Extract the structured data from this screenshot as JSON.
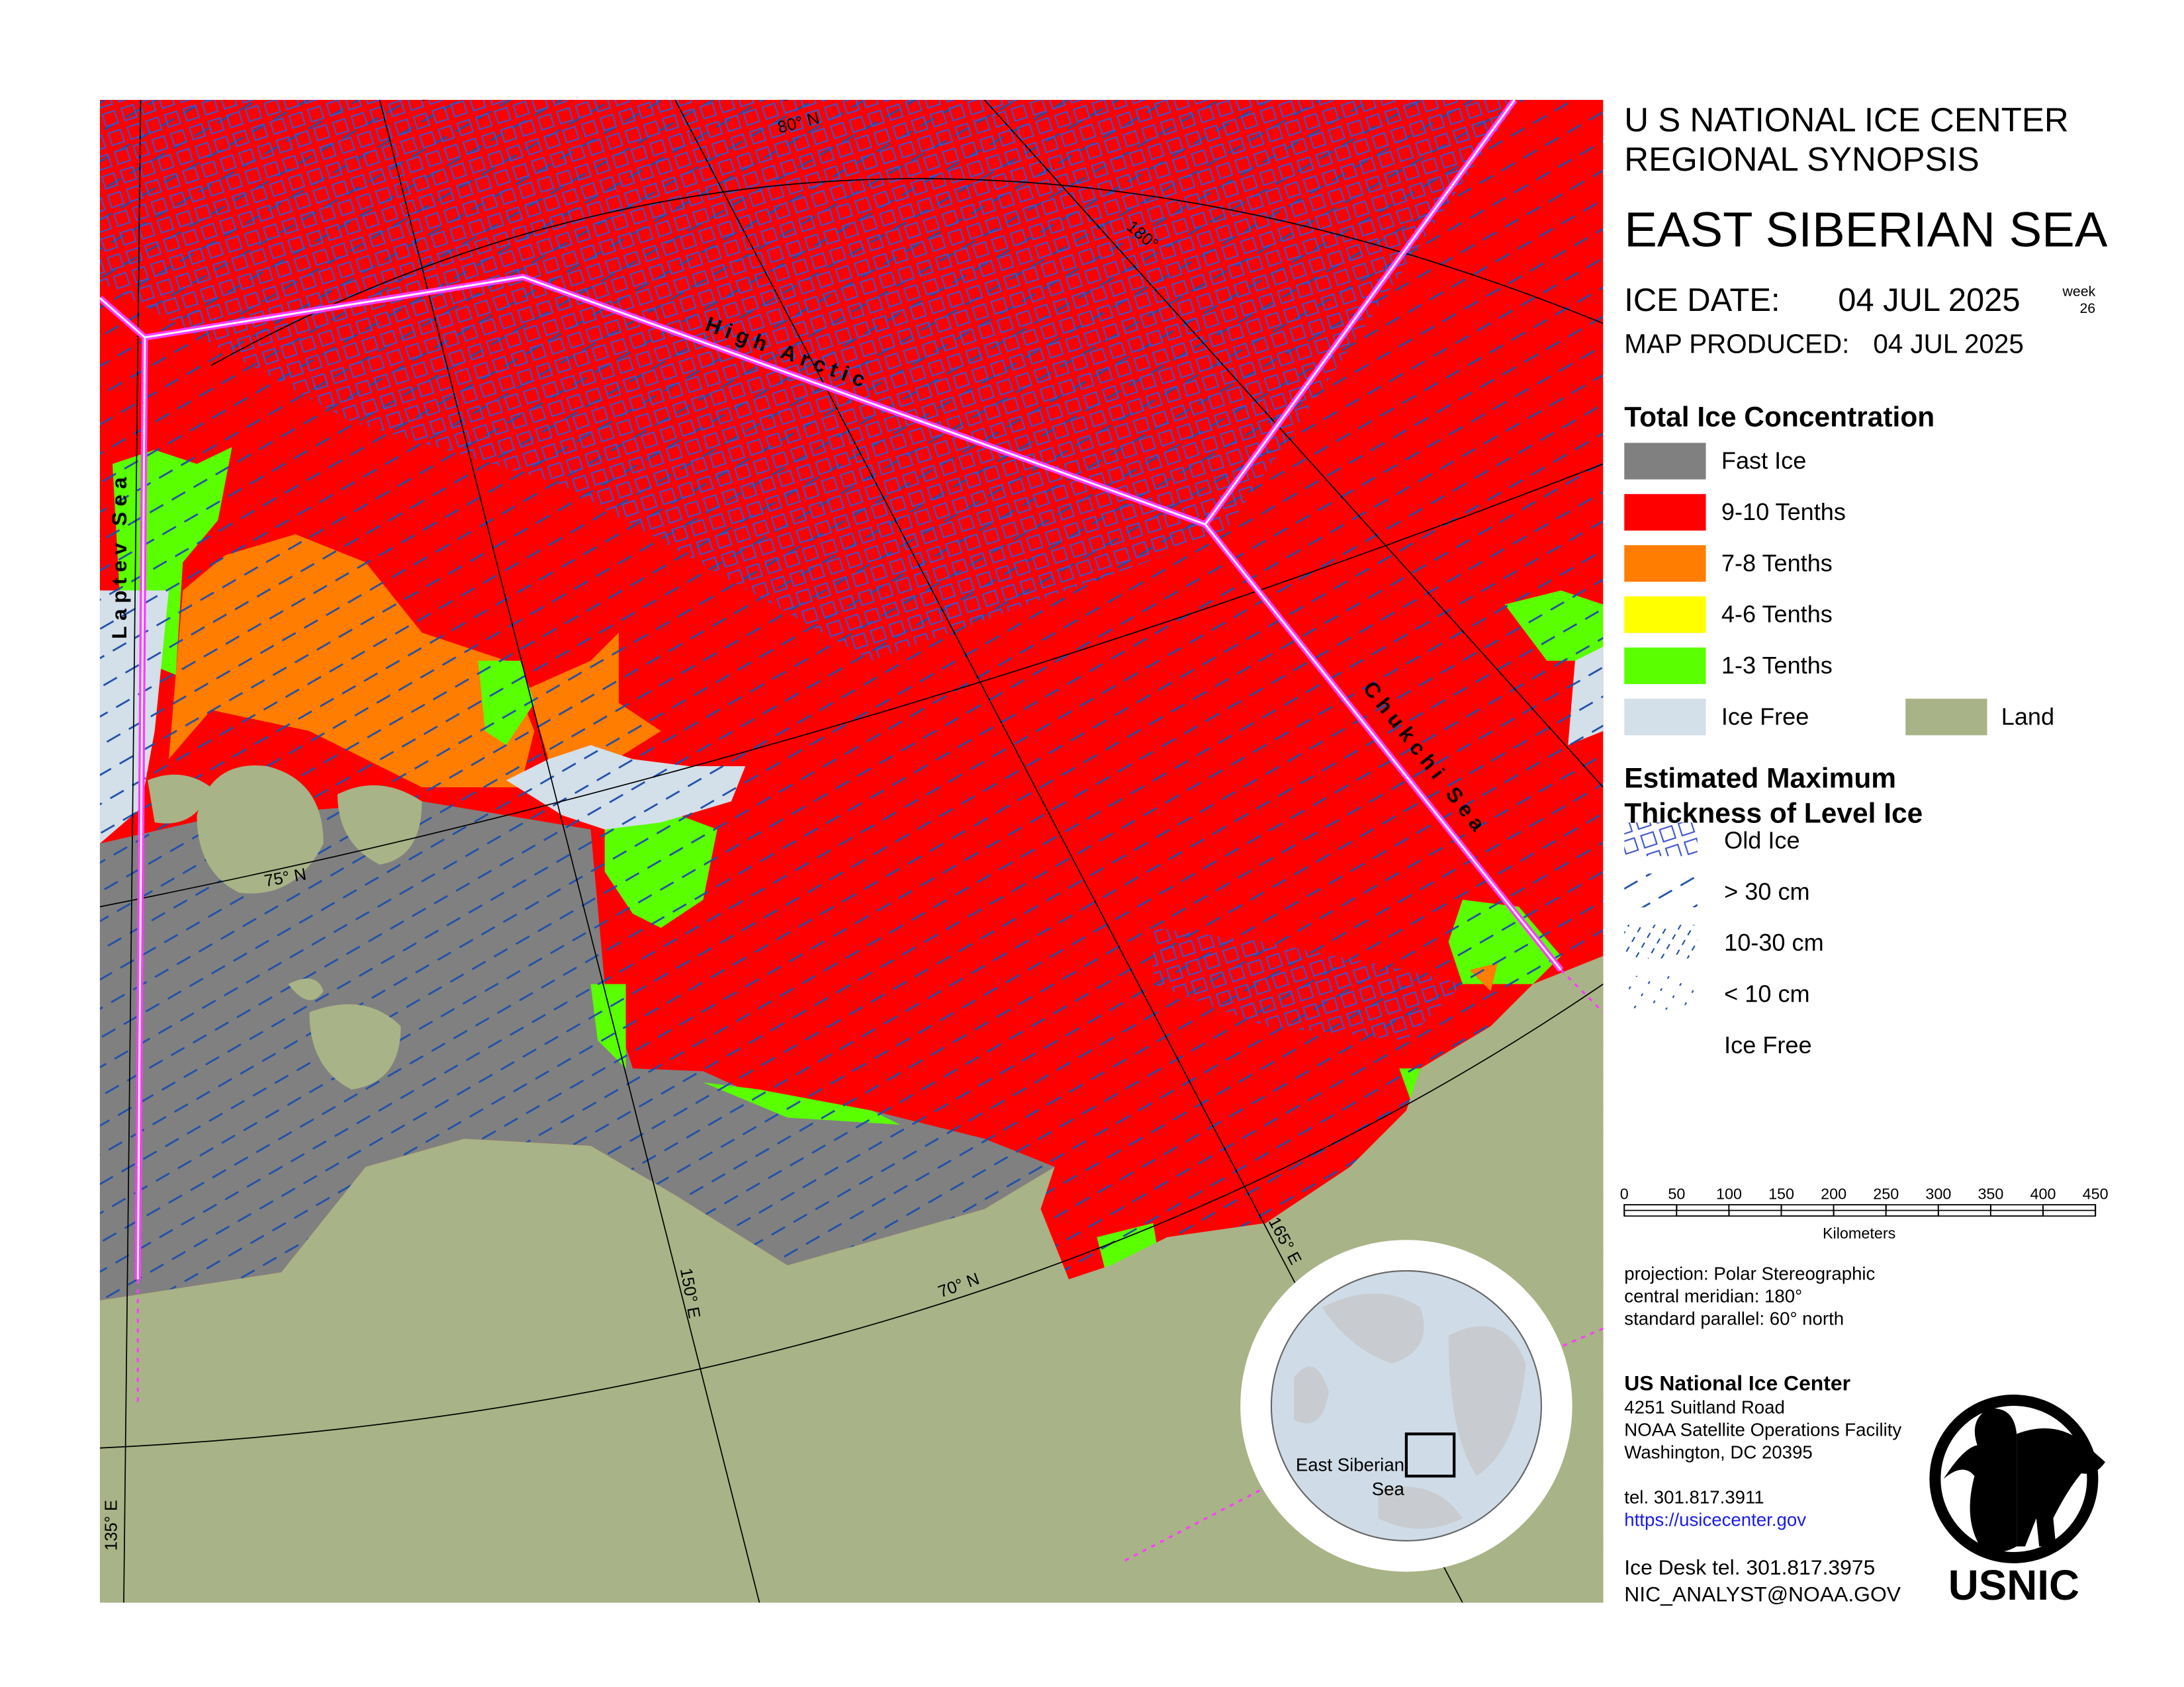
{
  "header": {
    "agency": "U S NATIONAL ICE CENTER",
    "product": "REGIONAL SYNOPSIS",
    "region": "EAST SIBERIAN SEA",
    "ice_date_label": "ICE DATE:",
    "ice_date": "04 JUL 2025",
    "week_label": "week",
    "week": "26",
    "produced_label": "MAP PRODUCED:",
    "produced": "04 JUL 2025"
  },
  "legend": {
    "concentration_title": "Total Ice Concentration",
    "concentration": [
      {
        "label": "Fast Ice",
        "color": "#808080"
      },
      {
        "label": "9-10 Tenths",
        "color": "#ff0000"
      },
      {
        "label": "7-8 Tenths",
        "color": "#ff7d00"
      },
      {
        "label": "4-6 Tenths",
        "color": "#ffff00"
      },
      {
        "label": "1-3 Tenths",
        "color": "#5aff00"
      },
      {
        "label": "Ice Free",
        "color": "#d3dfe9"
      }
    ],
    "land": {
      "label": "Land",
      "color": "#a8b387"
    },
    "thickness_title": [
      "Estimated Maximum",
      "Thickness of Level Ice"
    ],
    "thickness": [
      "Old Ice",
      "> 30 cm",
      "10-30 cm",
      "< 10 cm",
      "Ice Free"
    ]
  },
  "map": {
    "regions": [
      "High Arctic",
      "Laptev Sea",
      "Chukchi Sea"
    ],
    "graticule": [
      "80° N",
      "75° N",
      "70° N",
      "180°",
      "135° E",
      "150° E",
      "165° E"
    ],
    "inset": [
      "East Siberian",
      "Sea"
    ]
  },
  "scale_bar": {
    "ticks": [
      0,
      50,
      100,
      150,
      200,
      250,
      300,
      350,
      400,
      450
    ],
    "unit": "Kilometers"
  },
  "projection": [
    "projection: Polar Stereographic",
    "central meridian: 180°",
    "standard parallel:  60° north"
  ],
  "contact": {
    "name": "US National Ice Center",
    "address": [
      "4251 Suitland Road",
      "NOAA Satellite Operations Facility",
      "Washington, DC  20395"
    ],
    "tel": "tel. 301.817.3911",
    "url": "https://usicecenter.gov",
    "desk": "Ice Desk tel. 301.817.3975",
    "email": "NIC_ANALYST@NOAA.GOV"
  },
  "logo": "USNIC"
}
